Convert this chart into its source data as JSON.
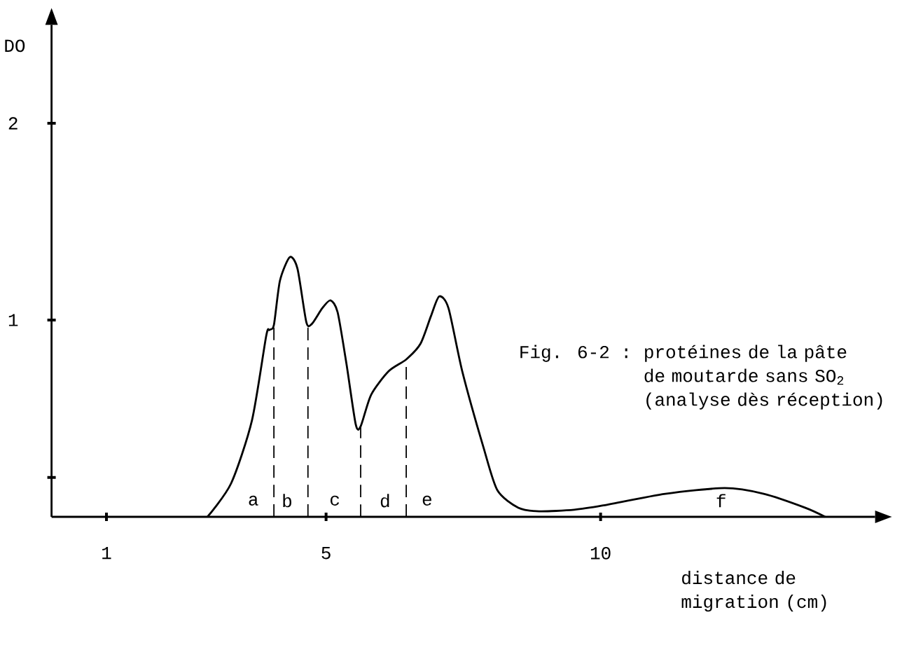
{
  "chart_data": {
    "type": "line",
    "title": "Fig. 6-2 :",
    "subtitle": "protéines de la pâte de moutarde sans SO$_{2}$ (analyse dès réception)",
    "xlabel": "distance de migration (cm)",
    "ylabel": "DO",
    "xlim": [
      0,
      15
    ],
    "ylim": [
      0,
      2.5
    ],
    "xticks": [
      1,
      5,
      10
    ],
    "yticks": [
      {
        "value": 0.2,
        "label": null
      },
      1,
      2
    ],
    "series": [
      {
        "color": "#000000",
        "x": [
          2.84,
          3.27,
          3.65,
          3.91,
          3.97,
          4.05,
          4.16,
          4.34,
          4.48,
          4.64,
          4.74,
          4.93,
          5.08,
          5.21,
          5.37,
          5.54,
          5.63,
          5.82,
          6.14,
          6.46,
          6.72,
          6.91,
          7.06,
          7.23,
          7.48,
          7.87,
          8.12,
          8.5,
          8.88,
          9.52,
          10.03,
          11.18,
          12.26,
          12.97,
          13.73,
          14.09
        ],
        "values": [
          0,
          0.17,
          0.49,
          0.92,
          0.95,
          0.975,
          1.2,
          1.32,
          1.26,
          0.99,
          0.98,
          1.06,
          1.1,
          1.04,
          0.78,
          0.47,
          0.46,
          0.62,
          0.74,
          0.8,
          0.88,
          1.02,
          1.12,
          1.06,
          0.74,
          0.35,
          0.135,
          0.046,
          0.028,
          0.036,
          0.057,
          0.117,
          0.146,
          0.117,
          0.046,
          0
        ]
      },
      {
        "color": "#000000",
        "line_style": "dashed",
        "x": [
          4.05,
          4.05
        ],
        "values": [
          0,
          0.975
        ]
      },
      {
        "color": "#000000",
        "line_style": "dashed",
        "x": [
          4.67,
          4.67
        ],
        "values": [
          0,
          0.99
        ]
      },
      {
        "color": "#000000",
        "line_style": "dashed",
        "x": [
          5.63,
          5.63
        ],
        "values": [
          0,
          0.46
        ]
      },
      {
        "color": "#000000",
        "line_style": "dashed",
        "x": [
          6.46,
          6.46
        ],
        "values": [
          0,
          0.8
        ]
      }
    ],
    "annotations": [
      "a",
      "b",
      "c",
      "d",
      "e",
      "f"
    ]
  }
}
